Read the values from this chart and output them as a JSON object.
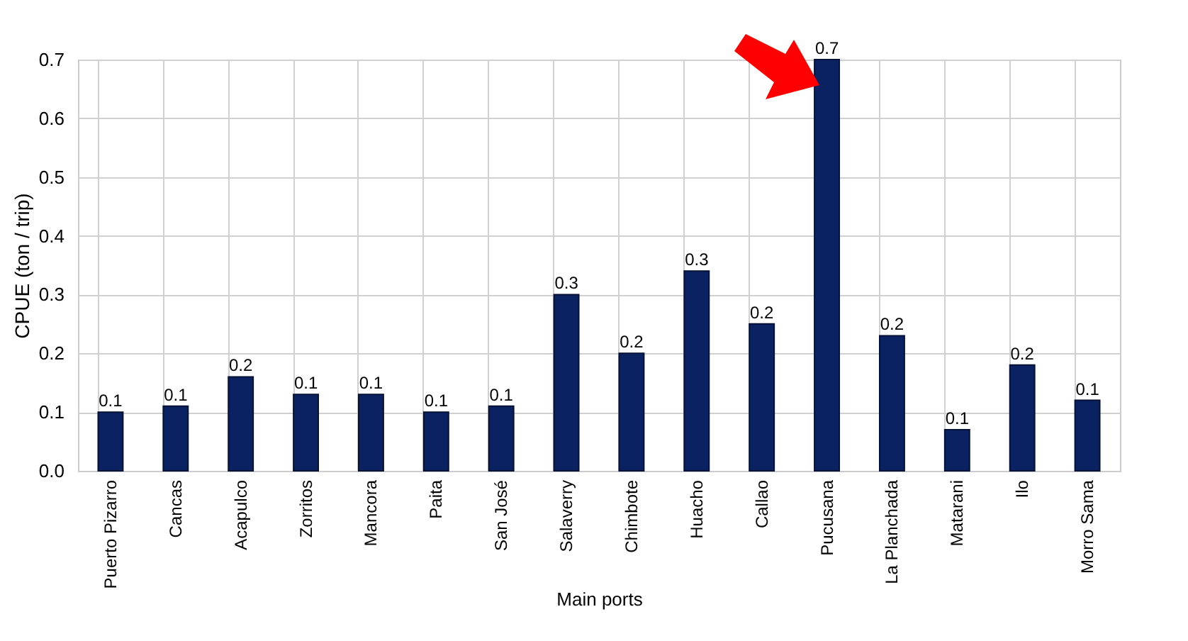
{
  "chart_data": {
    "type": "bar",
    "xlabel": "Main ports",
    "ylabel": "CPUE (ton / trip)",
    "categories": [
      "Puerto Pizarro",
      "Cancas",
      "Acapulco",
      "Zorritos",
      "Mancora",
      "Paita",
      "San José",
      "Salaverry",
      "Chimbote",
      "Huacho",
      "Callao",
      "Pucusana",
      "La Planchada",
      "Matarani",
      "Ilo",
      "Morro Sama"
    ],
    "values": [
      0.1,
      0.11,
      0.16,
      0.13,
      0.13,
      0.1,
      0.11,
      0.3,
      0.2,
      0.34,
      0.25,
      0.7,
      0.23,
      0.07,
      0.18,
      0.12
    ],
    "value_labels": [
      "0.1",
      "0.1",
      "0.2",
      "0.1",
      "0.1",
      "0.1",
      "0.1",
      "0.3",
      "0.2",
      "0.3",
      "0.2",
      "0.7",
      "0.2",
      "0.1",
      "0.2",
      "0.1"
    ],
    "color": "#0b2262",
    "ylim": [
      0,
      0.7
    ],
    "yticks": [
      {
        "value": 0,
        "label": "0.0"
      },
      {
        "value": 0.1,
        "label": "0.1"
      },
      {
        "value": 0.2,
        "label": "0.2"
      },
      {
        "value": 0.3,
        "label": "0.3"
      },
      {
        "value": 0.4,
        "label": "0.4"
      },
      {
        "value": 0.5,
        "label": "0.5"
      },
      {
        "value": 0.6,
        "label": "0.6"
      },
      {
        "value": 0.7,
        "label": "0.7"
      }
    ],
    "grid": true
  }
}
